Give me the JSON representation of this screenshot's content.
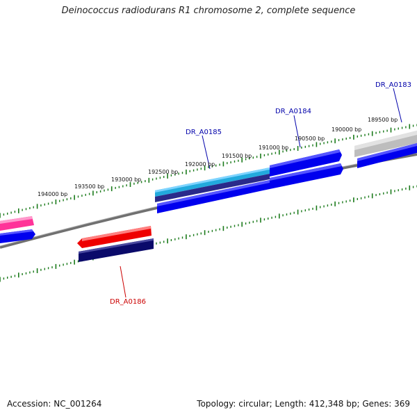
{
  "header": {
    "title": "Deinococcus radiodurans R1 chromosome 2, complete sequence"
  },
  "footer": {
    "accession": "Accession: NC_001264",
    "summary": "Topology: circular; Length: 412,348 bp; Genes: 369"
  },
  "ruler": {
    "labels": [
      "189500 bp",
      "190000 bp",
      "190500 bp",
      "191000 bp",
      "191500 bp",
      "192000 bp",
      "192500 bp",
      "193000 bp",
      "193500 bp",
      "194000 bp"
    ]
  },
  "genes": [
    {
      "label": "DR_A0183",
      "color": "#0000aa"
    },
    {
      "label": "DR_A0184",
      "color": "#0000aa"
    },
    {
      "label": "DR_A0185",
      "color": "#0000aa"
    },
    {
      "label": "DR_A0186",
      "color": "#cc0000"
    }
  ],
  "colors": {
    "backbone": "#808080",
    "tick": "#1a7a1a",
    "forward_gene": "#0000ee",
    "forward_cds": "#2a2a8a",
    "highlight_gene": "#22aadd",
    "reverse_gene": "#ee0000",
    "reverse_cds": "#0a0a6a",
    "pink_gene": "#ff3399",
    "grey_gene": "#bbbbbb"
  }
}
